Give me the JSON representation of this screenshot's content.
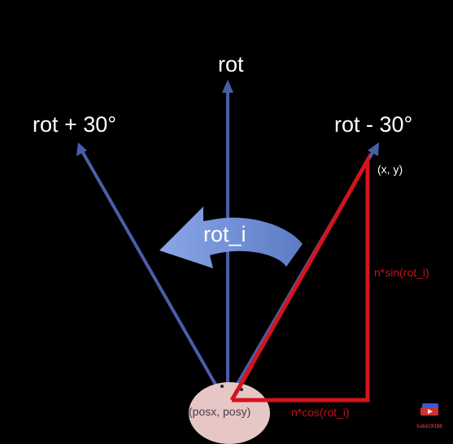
{
  "labels": {
    "rot": "rot",
    "rot_plus": "rot + 30°",
    "rot_minus": "rot - 30°",
    "point": "(x, y)",
    "rot_i": "rot_i",
    "sin": "n*sin(rot_i)",
    "cos": "n*cos(rot_i)",
    "origin": "(posx, posy)",
    "watermark": "SubSCRIBE"
  },
  "colors": {
    "background": "#000000",
    "vector_arrow": "#4a5ea8",
    "triangle": "#d4141c",
    "curved_arrow": "#6b8fd6",
    "blob": "#e7c6c6",
    "label_text": "#ffffff",
    "red_text": "#c0141c"
  }
}
